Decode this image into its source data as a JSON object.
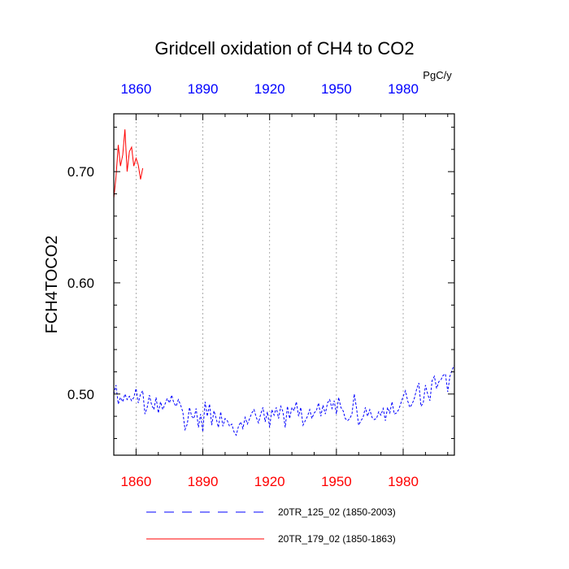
{
  "chart_data": {
    "type": "line",
    "title": "Gridcell oxidation of CH4 to CO2",
    "ylabel": "FCH4TOCO2",
    "units": "PgC/y",
    "xlim": [
      1850,
      2003
    ],
    "ylim": [
      0.445,
      0.752
    ],
    "x_ticks": [
      1860,
      1890,
      1920,
      1950,
      1980
    ],
    "x_tick_labels": [
      "1860",
      "1890",
      "1920",
      "1950",
      "1980"
    ],
    "y_ticks": [
      0.5,
      0.6,
      0.7
    ],
    "y_tick_labels": [
      "0.50",
      "0.60",
      "0.70"
    ],
    "colors": {
      "top_ticks": "#0000ff",
      "bottom_ticks": "#ff0000",
      "axis": "#000000",
      "grid": "#999999"
    },
    "series": [
      {
        "name": "20TR_125_02 (1850-2003)",
        "color": "#0000ff",
        "dash": "dashed",
        "x": [
          1850,
          1851,
          1852,
          1853,
          1854,
          1855,
          1856,
          1857,
          1858,
          1859,
          1860,
          1861,
          1862,
          1863,
          1864,
          1865,
          1866,
          1867,
          1868,
          1869,
          1870,
          1871,
          1872,
          1873,
          1874,
          1875,
          1876,
          1877,
          1878,
          1879,
          1880,
          1881,
          1882,
          1883,
          1884,
          1885,
          1886,
          1887,
          1888,
          1889,
          1890,
          1891,
          1892,
          1893,
          1894,
          1895,
          1896,
          1897,
          1898,
          1899,
          1900,
          1901,
          1902,
          1903,
          1904,
          1905,
          1906,
          1907,
          1908,
          1909,
          1910,
          1911,
          1912,
          1913,
          1914,
          1915,
          1916,
          1917,
          1918,
          1919,
          1920,
          1921,
          1922,
          1923,
          1924,
          1925,
          1926,
          1927,
          1928,
          1929,
          1930,
          1931,
          1932,
          1933,
          1934,
          1935,
          1936,
          1937,
          1938,
          1939,
          1940,
          1941,
          1942,
          1943,
          1944,
          1945,
          1946,
          1947,
          1948,
          1949,
          1950,
          1951,
          1952,
          1953,
          1954,
          1955,
          1956,
          1957,
          1958,
          1959,
          1960,
          1961,
          1962,
          1963,
          1964,
          1965,
          1966,
          1967,
          1968,
          1969,
          1970,
          1971,
          1972,
          1973,
          1974,
          1975,
          1976,
          1977,
          1978,
          1979,
          1980,
          1981,
          1982,
          1983,
          1984,
          1985,
          1986,
          1987,
          1988,
          1989,
          1990,
          1991,
          1992,
          1993,
          1994,
          1995,
          1996,
          1997,
          1998,
          1999,
          2000,
          2001,
          2002,
          2003
        ],
        "values": [
          0.5,
          0.508,
          0.491,
          0.497,
          0.493,
          0.5,
          0.495,
          0.498,
          0.494,
          0.497,
          0.505,
          0.492,
          0.5,
          0.503,
          0.482,
          0.488,
          0.499,
          0.49,
          0.486,
          0.497,
          0.483,
          0.493,
          0.486,
          0.491,
          0.496,
          0.492,
          0.499,
          0.492,
          0.489,
          0.495,
          0.49,
          0.484,
          0.468,
          0.473,
          0.488,
          0.48,
          0.478,
          0.487,
          0.47,
          0.482,
          0.466,
          0.493,
          0.48,
          0.491,
          0.472,
          0.485,
          0.478,
          0.47,
          0.484,
          0.471,
          0.478,
          0.476,
          0.471,
          0.473,
          0.466,
          0.463,
          0.471,
          0.475,
          0.469,
          0.479,
          0.473,
          0.478,
          0.483,
          0.486,
          0.479,
          0.474,
          0.482,
          0.488,
          0.475,
          0.484,
          0.47,
          0.486,
          0.481,
          0.488,
          0.478,
          0.489,
          0.484,
          0.47,
          0.489,
          0.478,
          0.488,
          0.485,
          0.493,
          0.48,
          0.488,
          0.472,
          0.476,
          0.48,
          0.486,
          0.478,
          0.483,
          0.485,
          0.492,
          0.48,
          0.49,
          0.482,
          0.492,
          0.495,
          0.487,
          0.494,
          0.482,
          0.497,
          0.488,
          0.485,
          0.478,
          0.476,
          0.478,
          0.482,
          0.5,
          0.488,
          0.472,
          0.476,
          0.479,
          0.488,
          0.48,
          0.486,
          0.479,
          0.477,
          0.478,
          0.484,
          0.481,
          0.487,
          0.476,
          0.488,
          0.483,
          0.493,
          0.482,
          0.483,
          0.486,
          0.492,
          0.498,
          0.503,
          0.494,
          0.488,
          0.491,
          0.496,
          0.504,
          0.51,
          0.489,
          0.492,
          0.508,
          0.5,
          0.494,
          0.512,
          0.516,
          0.505,
          0.511,
          0.513,
          0.517,
          0.518,
          0.502,
          0.516,
          0.522,
          0.526
        ],
        "legend_label": "20TR_125_02 (1850-2003)"
      },
      {
        "name": "20TR_179_02 (1850-1863)",
        "color": "#ff0000",
        "dash": "solid",
        "x": [
          1850,
          1851,
          1852,
          1853,
          1854,
          1855,
          1856,
          1857,
          1858,
          1859,
          1860,
          1861,
          1862,
          1863
        ],
        "values": [
          0.676,
          0.695,
          0.724,
          0.705,
          0.715,
          0.738,
          0.7,
          0.718,
          0.722,
          0.705,
          0.712,
          0.706,
          0.693,
          0.703
        ],
        "legend_label": "20TR_179_02 (1850-1863)"
      }
    ]
  }
}
